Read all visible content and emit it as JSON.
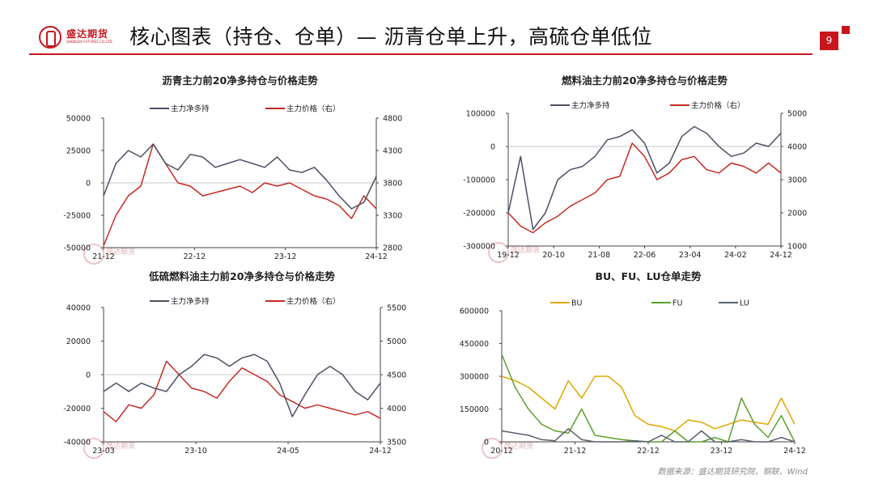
{
  "header": {
    "logo_cn": "盛达期货",
    "logo_en": "SHENGDA FUTURES CO.,LTD.",
    "title": "核心图表（持仓、仓单）— 沥青仓单上升，高硫仓单低位",
    "page_number": "9"
  },
  "footer": {
    "source": "数据来源：盛达期货研究院、钢联、Wind"
  },
  "watermark": "盛达期货",
  "colors": {
    "brand": "#c8161d",
    "net_long": "#4a5064",
    "price": "#c62a22",
    "bu": "#e0a800",
    "fu": "#5aa02c",
    "lu": "#59606e"
  },
  "chart_data": [
    {
      "id": "bu",
      "type": "line",
      "title": "沥青主力前20净多持仓与价格走势",
      "x_ticks": [
        "21-12",
        "22-12",
        "23-12",
        "24-12"
      ],
      "y_left": {
        "lim": [
          -50000,
          50000
        ],
        "ticks": [
          "50000",
          "25000",
          "0",
          "-25000",
          "-50000"
        ]
      },
      "y_right": {
        "lim": [
          2800,
          4800
        ],
        "ticks": [
          "4800",
          "4300",
          "3800",
          "3300",
          "2800"
        ]
      },
      "series": [
        {
          "name": "主力净多持",
          "axis": "left",
          "values": [
            -10000,
            15000,
            25000,
            20000,
            30000,
            15000,
            10000,
            22000,
            20000,
            12000,
            15000,
            18000,
            15000,
            12000,
            20000,
            10000,
            8000,
            12000,
            2000,
            -10000,
            -20000,
            -15000,
            5000
          ]
        },
        {
          "name": "主力价格（右）",
          "axis": "right",
          "values": [
            2830,
            3300,
            3600,
            3750,
            4400,
            4100,
            3800,
            3750,
            3600,
            3650,
            3700,
            3750,
            3650,
            3800,
            3750,
            3800,
            3700,
            3600,
            3550,
            3450,
            3250,
            3600,
            3400
          ]
        }
      ]
    },
    {
      "id": "fu",
      "type": "line",
      "title": "燃料油主力前20净多持仓与价格走势",
      "x_ticks": [
        "19-12",
        "20-10",
        "21-08",
        "22-06",
        "23-04",
        "24-02",
        "24-12"
      ],
      "y_left": {
        "lim": [
          -300000,
          100000
        ],
        "ticks": [
          "100000",
          "0",
          "-100000",
          "-200000",
          "-300000"
        ]
      },
      "y_right": {
        "lim": [
          1000,
          5000
        ],
        "ticks": [
          "5000",
          "4000",
          "3000",
          "2000",
          "1000"
        ]
      },
      "series": [
        {
          "name": "主力净多持",
          "axis": "left",
          "values": [
            -200000,
            -30000,
            -250000,
            -200000,
            -100000,
            -70000,
            -60000,
            -30000,
            20000,
            30000,
            50000,
            10000,
            -80000,
            -50000,
            30000,
            60000,
            40000,
            0,
            -30000,
            -20000,
            10000,
            0,
            40000
          ]
        },
        {
          "name": "主力价格（右）",
          "axis": "right",
          "values": [
            2000,
            1600,
            1400,
            1700,
            1900,
            2200,
            2400,
            2600,
            3000,
            3100,
            4100,
            3700,
            3000,
            3200,
            3600,
            3700,
            3300,
            3200,
            3500,
            3400,
            3200,
            3500,
            3200
          ]
        }
      ]
    },
    {
      "id": "lu",
      "type": "line",
      "title": "低硫燃料油主力前20净多持仓与价格走势",
      "x_ticks": [
        "23-03",
        "23-10",
        "24-05",
        "24-12"
      ],
      "y_left": {
        "lim": [
          -40000,
          40000
        ],
        "ticks": [
          "40000",
          "20000",
          "0",
          "-20000",
          "-40000"
        ]
      },
      "y_right": {
        "lim": [
          3500,
          5500
        ],
        "ticks": [
          "5500",
          "5000",
          "4500",
          "4000",
          "3500"
        ]
      },
      "series": [
        {
          "name": "主力净多持",
          "axis": "left",
          "values": [
            -10000,
            -5000,
            -10000,
            -5000,
            -8000,
            -10000,
            0,
            5000,
            12000,
            10000,
            5000,
            10000,
            12000,
            8000,
            -5000,
            -25000,
            -12000,
            0,
            5000,
            0,
            -10000,
            -15000,
            -5000
          ]
        },
        {
          "name": "主力价格（右）",
          "axis": "right",
          "values": [
            3950,
            3800,
            4050,
            4000,
            4200,
            4700,
            4500,
            4300,
            4250,
            4150,
            4400,
            4600,
            4500,
            4400,
            4200,
            4100,
            4000,
            4050,
            4000,
            3950,
            3900,
            3950,
            3850
          ]
        }
      ]
    },
    {
      "id": "wr",
      "type": "line",
      "title": "BU、FU、LU仓单走势",
      "x_ticks": [
        "20-12",
        "21-12",
        "22-12",
        "23-12",
        "24-12"
      ],
      "y_left": {
        "lim": [
          0,
          600000
        ],
        "ticks": [
          "600000",
          "450000",
          "300000",
          "150000",
          "0"
        ]
      },
      "series": [
        {
          "name": "BU",
          "axis": "left",
          "values": [
            300000,
            280000,
            250000,
            200000,
            150000,
            280000,
            200000,
            300000,
            300000,
            250000,
            120000,
            80000,
            70000,
            50000,
            100000,
            90000,
            60000,
            80000,
            100000,
            90000,
            80000,
            200000,
            80000
          ]
        },
        {
          "name": "FU",
          "axis": "left",
          "values": [
            400000,
            250000,
            150000,
            80000,
            50000,
            40000,
            150000,
            30000,
            20000,
            10000,
            5000,
            0,
            0,
            50000,
            0,
            0,
            20000,
            0,
            200000,
            80000,
            20000,
            120000,
            0
          ]
        },
        {
          "name": "LU",
          "axis": "left",
          "values": [
            50000,
            40000,
            30000,
            10000,
            5000,
            60000,
            10000,
            0,
            0,
            0,
            5000,
            0,
            30000,
            0,
            0,
            50000,
            0,
            0,
            10000,
            0,
            0,
            20000,
            0
          ]
        }
      ]
    }
  ]
}
